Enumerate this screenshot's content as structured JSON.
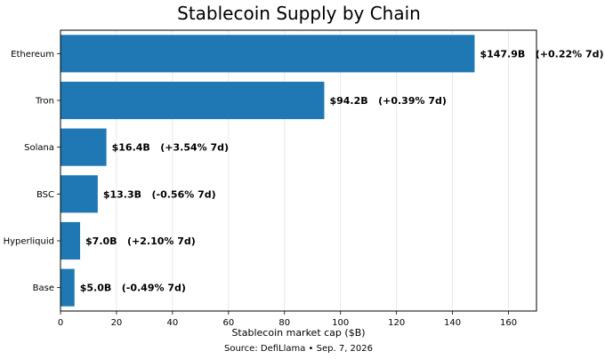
{
  "chart_data": {
    "type": "bar",
    "orientation": "horizontal",
    "title": "Stablecoin Supply by Chain",
    "xlabel": "Stablecoin market cap ($B)",
    "ylabel": "",
    "xlim": [
      0,
      170
    ],
    "xticks": [
      0,
      20,
      40,
      60,
      80,
      100,
      120,
      140,
      160
    ],
    "grid": "vertical",
    "bar_color": "#1f77b4",
    "categories": [
      "Ethereum",
      "Tron",
      "Solana",
      "BSC",
      "Hyperliquid",
      "Base"
    ],
    "values": [
      147.9,
      94.2,
      16.4,
      13.3,
      7.0,
      5.0
    ],
    "data_labels": [
      "$147.9B   (+0.22% 7d)",
      "$94.2B   (+0.39% 7d)",
      "$16.4B   (+3.54% 7d)",
      "$13.3B   (-0.56% 7d)",
      "$7.0B   (+2.10% 7d)",
      "$5.0B   (-0.49% 7d)"
    ],
    "source": "Source: DefiLlama • Sep. 7, 2026"
  }
}
